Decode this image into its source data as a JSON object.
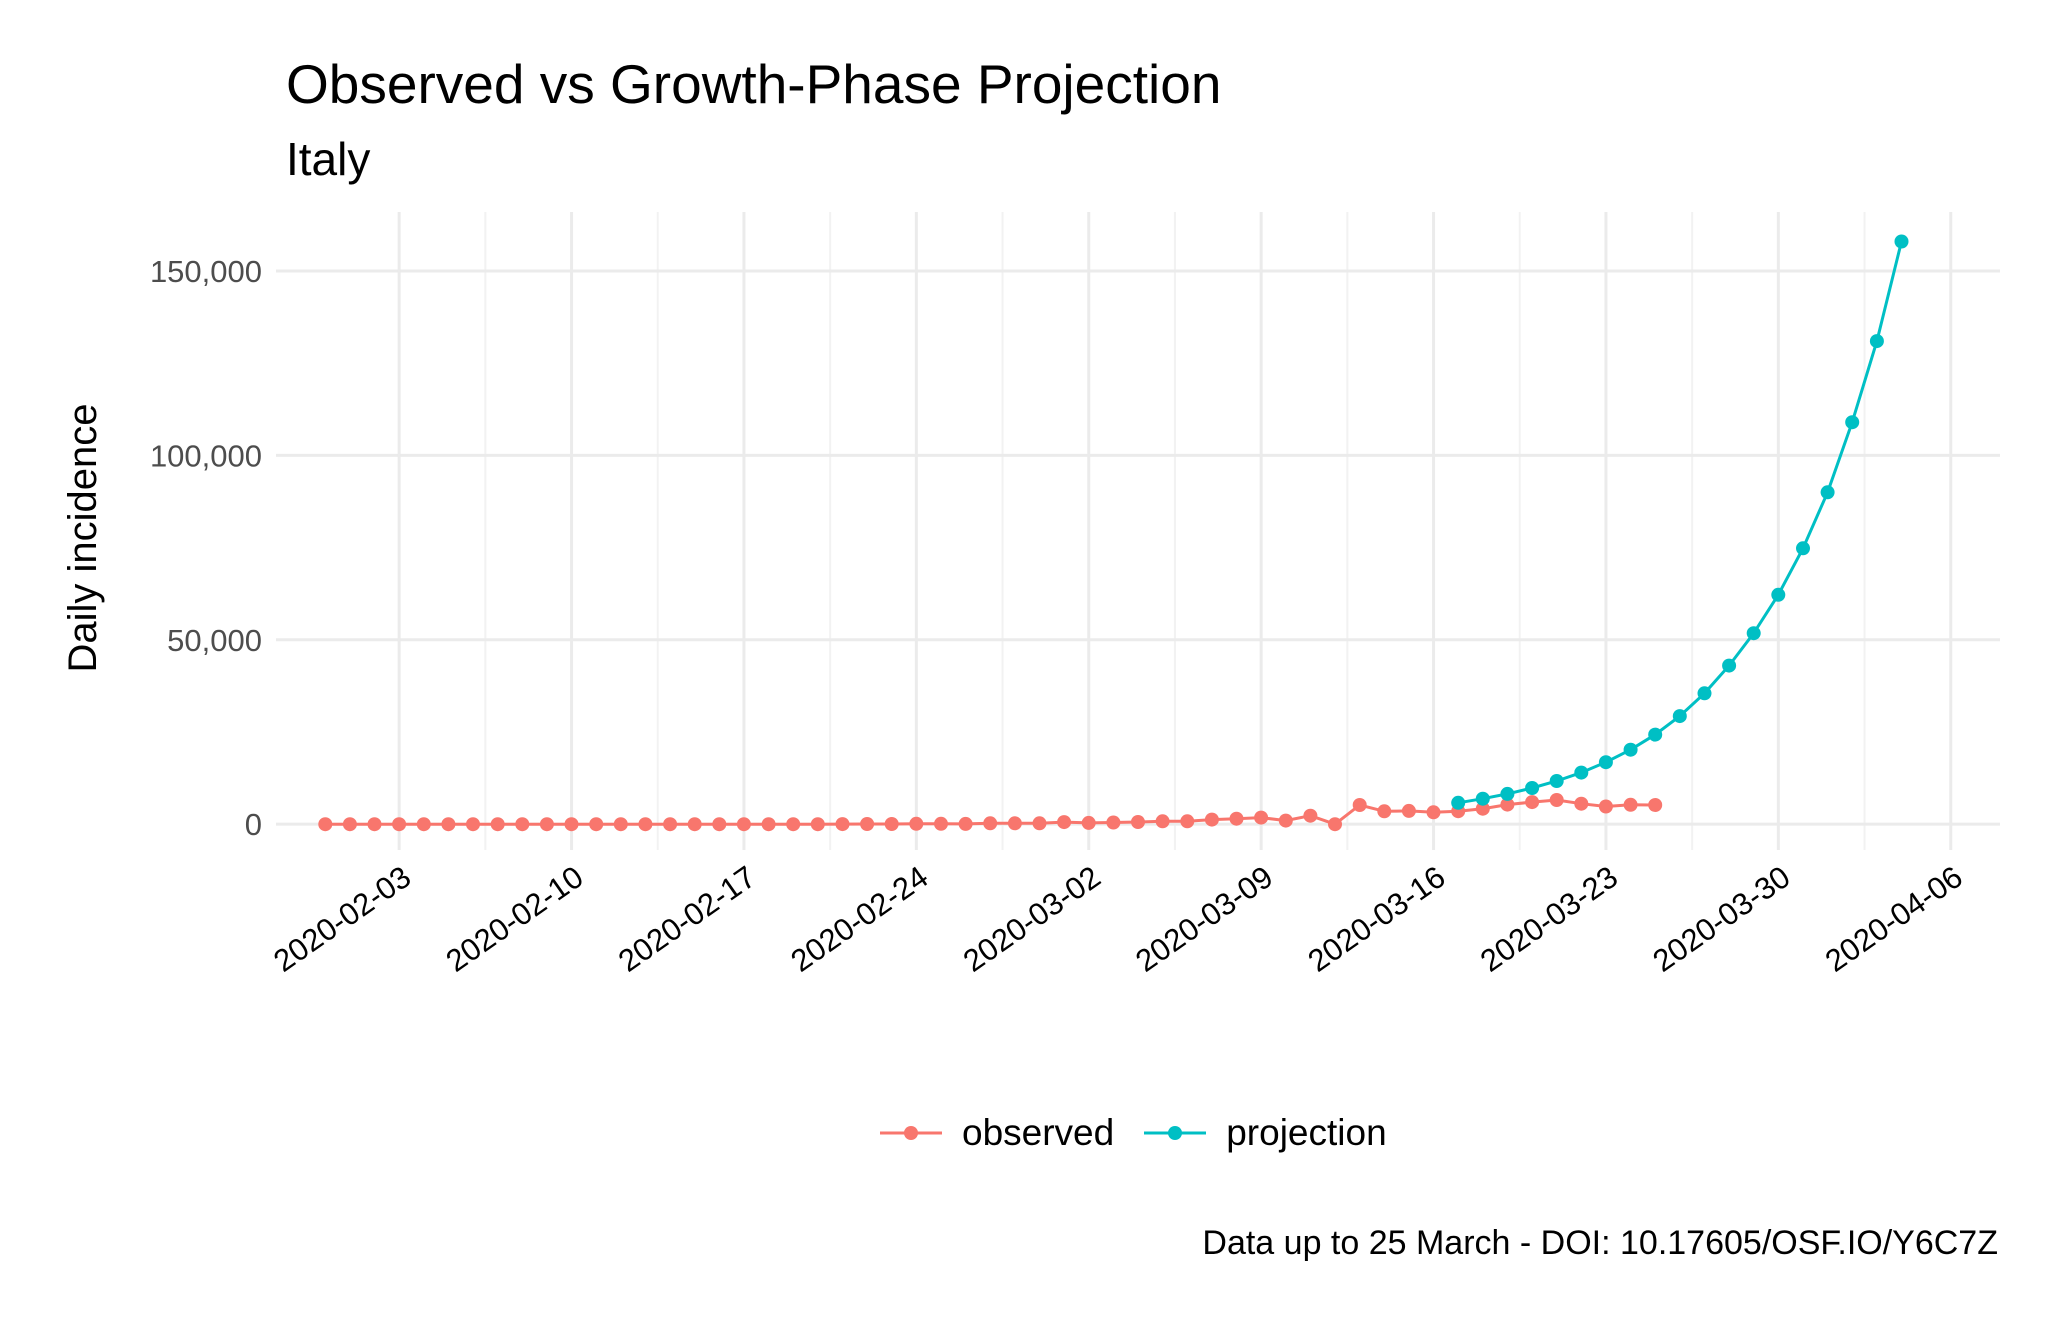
{
  "chart_data": {
    "type": "line",
    "title": "Observed vs Growth-Phase Projection",
    "subtitle": "Italy",
    "xlabel": "",
    "ylabel": "Daily incidence",
    "caption": "Data up to 25 March - DOI: 10.17605/OSF.IO/Y6C7Z",
    "x_ticks": [
      "2020-02-03",
      "2020-02-10",
      "2020-02-17",
      "2020-02-24",
      "2020-03-02",
      "2020-03-09",
      "2020-03-16",
      "2020-03-23",
      "2020-03-30",
      "2020-04-06"
    ],
    "y_ticks": [
      0,
      50000,
      100000,
      150000
    ],
    "y_tick_labels": [
      "0",
      "50,000",
      "100,000",
      "150,000"
    ],
    "xlim": [
      "2020-01-29",
      "2020-04-08"
    ],
    "ylim": [
      -7000,
      166000
    ],
    "grid": true,
    "legend_position": "bottom",
    "series": [
      {
        "name": "observed",
        "color": "#F8766D",
        "x": [
          "2020-01-31",
          "2020-02-01",
          "2020-02-02",
          "2020-02-03",
          "2020-02-04",
          "2020-02-05",
          "2020-02-06",
          "2020-02-07",
          "2020-02-08",
          "2020-02-09",
          "2020-02-10",
          "2020-02-11",
          "2020-02-12",
          "2020-02-13",
          "2020-02-14",
          "2020-02-15",
          "2020-02-16",
          "2020-02-17",
          "2020-02-18",
          "2020-02-19",
          "2020-02-20",
          "2020-02-21",
          "2020-02-22",
          "2020-02-23",
          "2020-02-24",
          "2020-02-25",
          "2020-02-26",
          "2020-02-27",
          "2020-02-28",
          "2020-02-29",
          "2020-03-01",
          "2020-03-02",
          "2020-03-03",
          "2020-03-04",
          "2020-03-05",
          "2020-03-06",
          "2020-03-07",
          "2020-03-08",
          "2020-03-09",
          "2020-03-10",
          "2020-03-11",
          "2020-03-12",
          "2020-03-13",
          "2020-03-14",
          "2020-03-15",
          "2020-03-16",
          "2020-03-17",
          "2020-03-18",
          "2020-03-19",
          "2020-03-20",
          "2020-03-21",
          "2020-03-22",
          "2020-03-23",
          "2020-03-24",
          "2020-03-25"
        ],
        "values": [
          3,
          0,
          0,
          0,
          0,
          0,
          0,
          1,
          0,
          0,
          0,
          0,
          0,
          0,
          0,
          0,
          0,
          0,
          0,
          0,
          0,
          17,
          62,
          53,
          97,
          93,
          78,
          250,
          238,
          240,
          566,
          342,
          466,
          587,
          769,
          778,
          1247,
          1492,
          1797,
          977,
          2313,
          0,
          5198,
          3497,
          3590,
          3233,
          3526,
          4207,
          5322,
          5986,
          6557,
          5560,
          4789,
          5249,
          5210
        ]
      },
      {
        "name": "projection",
        "color": "#00BFC4",
        "x": [
          "2020-03-17",
          "2020-03-18",
          "2020-03-19",
          "2020-03-20",
          "2020-03-21",
          "2020-03-22",
          "2020-03-23",
          "2020-03-24",
          "2020-03-25",
          "2020-03-26",
          "2020-03-27",
          "2020-03-28",
          "2020-03-29",
          "2020-03-30",
          "2020-03-31",
          "2020-04-01",
          "2020-04-02",
          "2020-04-03",
          "2020-04-04"
        ],
        "values": [
          5800,
          6900,
          8200,
          9800,
          11700,
          14000,
          16800,
          20200,
          24300,
          29300,
          35500,
          43000,
          51800,
          62200,
          74800,
          90000,
          109000,
          131000,
          158000
        ]
      }
    ]
  }
}
